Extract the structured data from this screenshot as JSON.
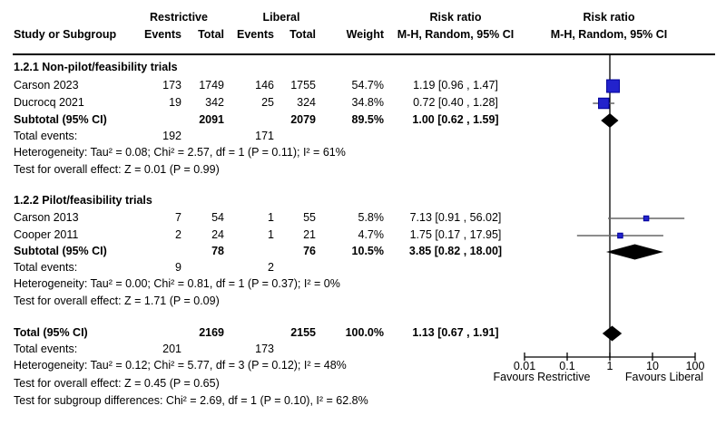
{
  "header": {
    "study_or_subgroup": "Study or Subgroup",
    "restrictive": "Restrictive",
    "liberal": "Liberal",
    "events1": "Events",
    "total1": "Total",
    "events2": "Events",
    "total2": "Total",
    "weight": "Weight",
    "risk_ratio_text": "Risk ratio",
    "mh_text": "M-H, Random, 95% CI",
    "risk_ratio_plot": "Risk ratio",
    "mh_plot": "M-H, Random, 95% CI"
  },
  "sections": [
    {
      "heading": "1.2.1 Non-pilot/feasibility trials",
      "studies": [
        {
          "name": "Carson 2023",
          "e1": "173",
          "t1": "1749",
          "e2": "146",
          "t2": "1755",
          "weight": "54.7%",
          "ci": "1.19 [0.96 , 1.47]"
        },
        {
          "name": "Ducrocq 2021",
          "e1": "19",
          "t1": "342",
          "e2": "25",
          "t2": "324",
          "weight": "34.8%",
          "ci": "0.72 [0.40 , 1.28]"
        }
      ],
      "subtotal_label": "Subtotal (95% CI)",
      "subtotal": {
        "t1": "2091",
        "t2": "2079",
        "weight": "89.5%",
        "ci": "1.00 [0.62 , 1.59]"
      },
      "total_events_label": "Total events:",
      "total_events": {
        "e1": "192",
        "e2": "171"
      },
      "heterogeneity": "Heterogeneity: Tau² = 0.08; Chi² = 2.57, df = 1 (P = 0.11); I² = 61%",
      "overall_effect": "Test for overall effect: Z = 0.01 (P = 0.99)"
    },
    {
      "heading": "1.2.2 Pilot/feasibility trials",
      "studies": [
        {
          "name": "Carson 2013",
          "e1": "7",
          "t1": "54",
          "e2": "1",
          "t2": "55",
          "weight": "5.8%",
          "ci": "7.13 [0.91 , 56.02]"
        },
        {
          "name": "Cooper 2011",
          "e1": "2",
          "t1": "24",
          "e2": "1",
          "t2": "21",
          "weight": "4.7%",
          "ci": "1.75 [0.17 , 17.95]"
        }
      ],
      "subtotal_label": "Subtotal (95% CI)",
      "subtotal": {
        "t1": "78",
        "t2": "76",
        "weight": "10.5%",
        "ci": "3.85 [0.82 , 18.00]"
      },
      "total_events_label": "Total events:",
      "total_events": {
        "e1": "9",
        "e2": "2"
      },
      "heterogeneity": "Heterogeneity: Tau² = 0.00; Chi² = 0.81, df = 1 (P = 0.37); I² = 0%",
      "overall_effect": "Test for overall effect: Z = 1.71 (P = 0.09)"
    }
  ],
  "total": {
    "label": "Total (95% CI)",
    "t1": "2169",
    "t2": "2155",
    "weight": "100.0%",
    "ci": "1.13 [0.67 , 1.91]",
    "total_events_label": "Total events:",
    "total_events": {
      "e1": "201",
      "e2": "173"
    },
    "heterogeneity": "Heterogeneity: Tau² = 0.12; Chi² = 5.77, df = 3 (P = 0.12); I² = 48%",
    "overall_effect": "Test for overall effect: Z = 0.45 (P = 0.65)",
    "subgroup_differences": "Test for subgroup differences: Chi² = 2.69, df = 1 (P = 0.10), I² = 62.8%"
  },
  "axis": {
    "tick_labels": [
      "0.01",
      "0.1",
      "1",
      "10",
      "100"
    ],
    "favours_left": "Favours Restrictive",
    "favours_right": "Favours Liberal"
  },
  "colors": {
    "marker_fill": "#2222CC",
    "marker_border": "#000099",
    "ci_line": "#666666",
    "diamond": "#000000",
    "axis_line": "#000000"
  },
  "chart_data": {
    "type": "forest",
    "effect_measure": "Risk ratio (M-H, Random, 95% CI)",
    "x_scale": "log10",
    "x_ticks": [
      0.01,
      0.1,
      1,
      10,
      100
    ],
    "x_range": [
      0.01,
      100
    ],
    "null_line": 1,
    "axis_label_left": "Favours Restrictive",
    "axis_label_right": "Favours Liberal",
    "points": [
      {
        "label": "Carson 2023",
        "kind": "study",
        "estimate": 1.19,
        "ci_low": 0.96,
        "ci_high": 1.47,
        "weight_pct": 54.7
      },
      {
        "label": "Ducrocq 2021",
        "kind": "study",
        "estimate": 0.72,
        "ci_low": 0.4,
        "ci_high": 1.28,
        "weight_pct": 34.8
      },
      {
        "label": "Subtotal 1.2.1 Non-pilot/feasibility trials",
        "kind": "diamond",
        "estimate": 1.0,
        "ci_low": 0.62,
        "ci_high": 1.59
      },
      {
        "label": "Carson 2013",
        "kind": "study",
        "estimate": 7.13,
        "ci_low": 0.91,
        "ci_high": 56.02,
        "weight_pct": 5.8
      },
      {
        "label": "Cooper 2011",
        "kind": "study",
        "estimate": 1.75,
        "ci_low": 0.17,
        "ci_high": 17.95,
        "weight_pct": 4.7
      },
      {
        "label": "Subtotal 1.2.2 Pilot/feasibility trials",
        "kind": "diamond",
        "estimate": 3.85,
        "ci_low": 0.82,
        "ci_high": 18.0
      },
      {
        "label": "Total",
        "kind": "diamond",
        "estimate": 1.13,
        "ci_low": 0.67,
        "ci_high": 1.91
      }
    ]
  }
}
